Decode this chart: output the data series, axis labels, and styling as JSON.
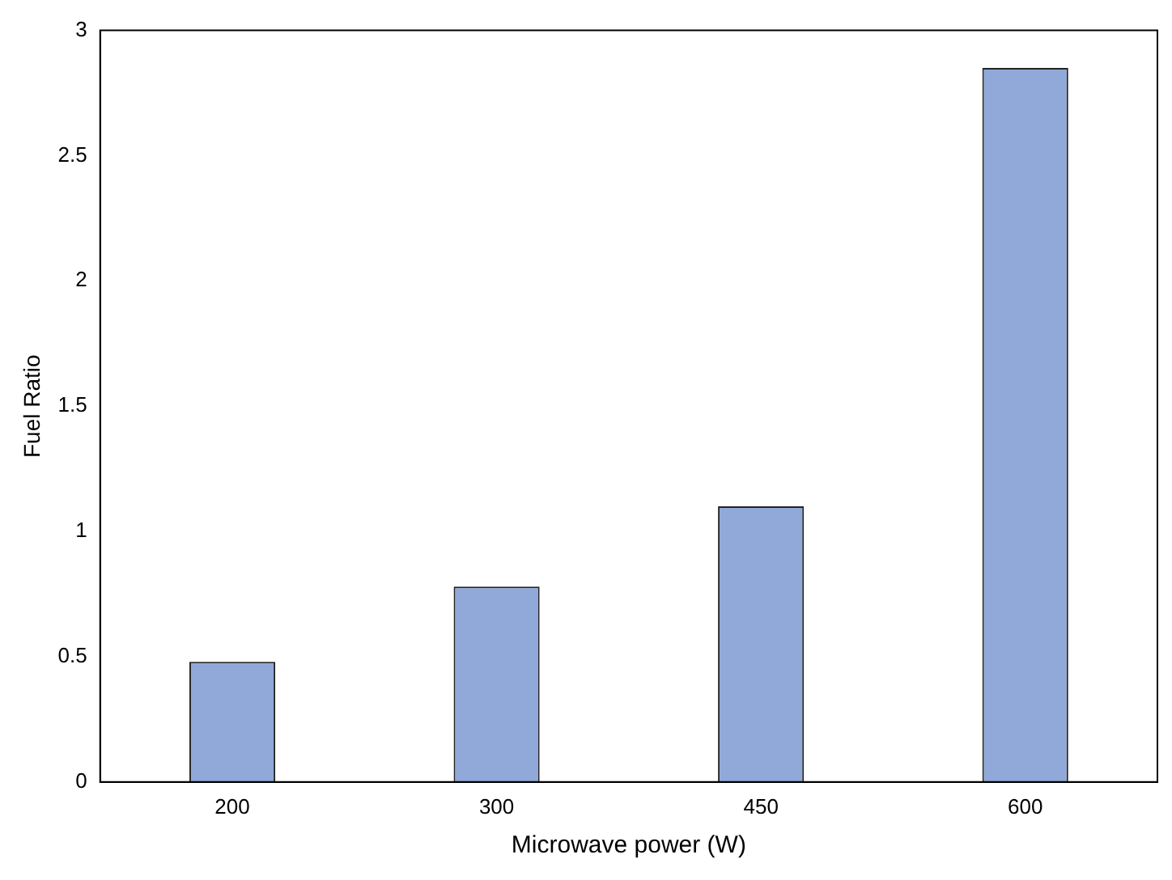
{
  "chart_data": {
    "type": "bar",
    "xlabel": "Microwave power (W)",
    "ylabel": "Fuel Ratio",
    "categories": [
      "200",
      "300",
      "450",
      "600"
    ],
    "values": [
      0.48,
      0.78,
      1.1,
      2.85
    ],
    "color": "#91a9d8",
    "ylim": [
      0,
      3
    ],
    "yticks": [
      0,
      0.5,
      1,
      1.5,
      2,
      2.5,
      3
    ],
    "grid": false,
    "legend": false
  }
}
